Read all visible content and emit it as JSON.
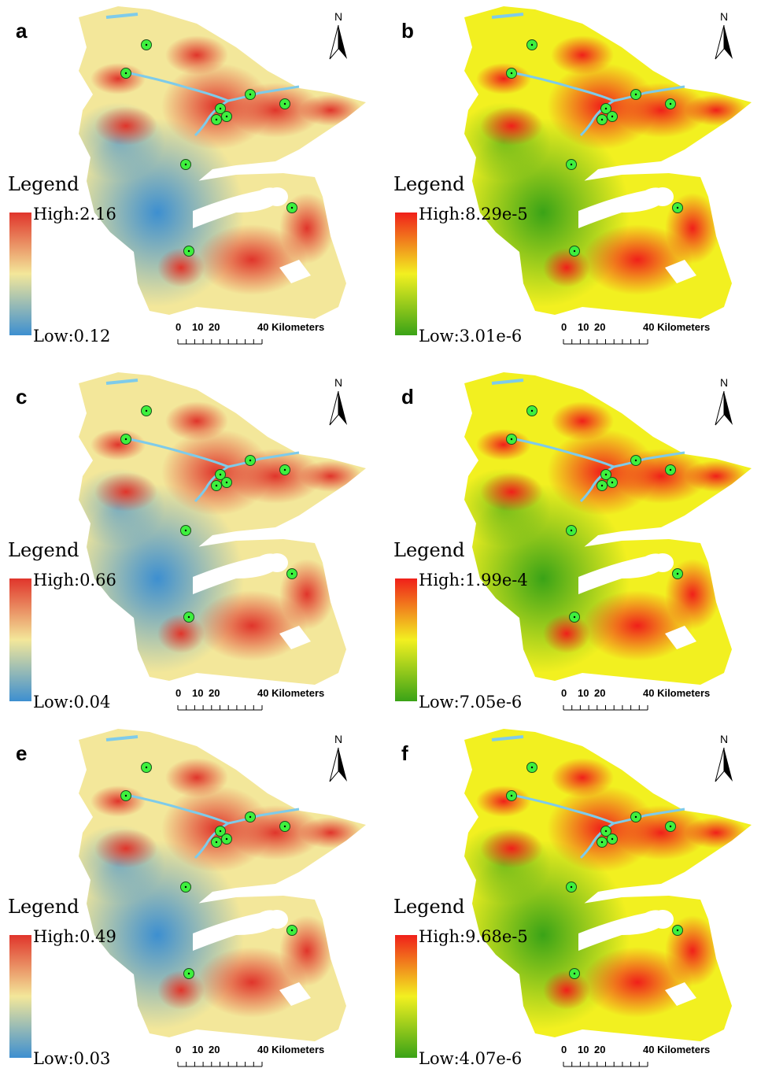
{
  "panels": [
    {
      "label": "a",
      "north": "N",
      "legend_title": "Legend",
      "high": "High:2.16",
      "low": "Low:0.12",
      "scale_labels": [
        "0",
        "10",
        "20",
        "40 Kilometers"
      ],
      "legend_colors": [
        "#e0352b",
        "#f3e79a",
        "#3d8fd0"
      ]
    },
    {
      "label": "b",
      "north": "N",
      "legend_title": "Legend",
      "high": "High:8.29e-5",
      "low": "Low:3.01e-6",
      "scale_labels": [
        "0",
        "10",
        "20",
        "40 Kilometers"
      ],
      "legend_colors": [
        "#f0201a",
        "#f2f020",
        "#3aa317"
      ]
    },
    {
      "label": "c",
      "north": "N",
      "legend_title": "Legend",
      "high": "High:0.66",
      "low": "Low:0.04",
      "scale_labels": [
        "0",
        "10",
        "20",
        "40 Kilometers"
      ],
      "legend_colors": [
        "#e0352b",
        "#f3e79a",
        "#3d8fd0"
      ]
    },
    {
      "label": "d",
      "north": "N",
      "legend_title": "Legend",
      "high": "High:1.99e-4",
      "low": "Low:7.05e-6",
      "scale_labels": [
        "0",
        "10",
        "20",
        "40 Kilometers"
      ],
      "legend_colors": [
        "#f0201a",
        "#f2f020",
        "#3aa317"
      ]
    },
    {
      "label": "e",
      "north": "N",
      "legend_title": "Legend",
      "high": "High:0.49",
      "low": "Low:0.03",
      "scale_labels": [
        "0",
        "10",
        "20",
        "40 Kilometers"
      ],
      "legend_colors": [
        "#e0352b",
        "#f3e79a",
        "#3d8fd0"
      ]
    },
    {
      "label": "f",
      "north": "N",
      "legend_title": "Legend",
      "high": "High:9.68e-5",
      "low": "Low:4.07e-6",
      "scale_labels": [
        "0",
        "10",
        "20",
        "40 Kilometers"
      ],
      "legend_colors": [
        "#f0201a",
        "#f2f020",
        "#3aa317"
      ]
    }
  ]
}
